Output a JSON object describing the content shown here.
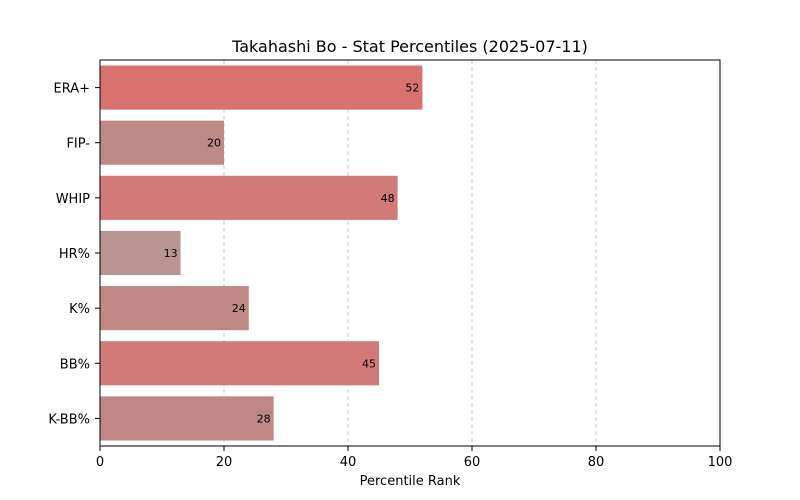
{
  "chart_data": {
    "type": "bar",
    "orientation": "horizontal",
    "title": "Takahashi Bo - Stat Percentiles (2025-07-11)",
    "xlabel": "Percentile Rank",
    "ylabel": "",
    "xlim": [
      0,
      100
    ],
    "xticks": [
      0,
      20,
      40,
      60,
      80,
      100
    ],
    "grid": "x-dashed",
    "categories": [
      "ERA+",
      "FIP-",
      "WHIP",
      "HR%",
      "K%",
      "BB%",
      "K-BB%"
    ],
    "values": [
      52,
      20,
      48,
      13,
      24,
      45,
      28
    ],
    "colors": [
      "#d9716f",
      "#bd8a87",
      "#d27a77",
      "#b89593",
      "#c08985",
      "#d27a77",
      "#bf8886"
    ]
  }
}
